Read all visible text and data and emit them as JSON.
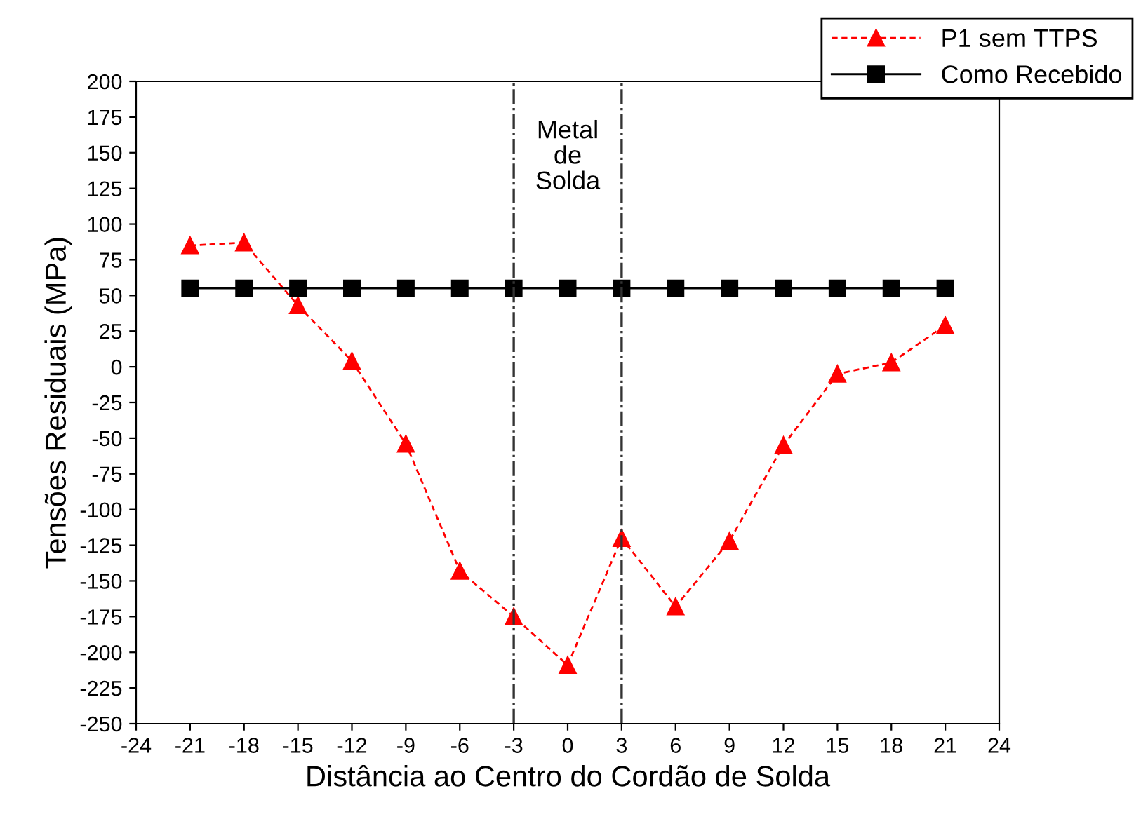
{
  "chart_data": {
    "type": "line",
    "xlabel": "Distância ao Centro do Cordão de Solda",
    "ylabel": "Tensões Residuais (MPa)",
    "x": [
      -21,
      -18,
      -15,
      -12,
      -9,
      -6,
      -3,
      0,
      3,
      6,
      9,
      12,
      15,
      18,
      21
    ],
    "series": [
      {
        "name": "P1 sem TTPS",
        "color": "#ff0000",
        "marker": "triangle",
        "line_style": "dashed",
        "values": [
          85,
          87,
          43,
          4,
          -54,
          -143,
          -175,
          -209,
          -120,
          -168,
          -122,
          -55,
          -5,
          3,
          29
        ]
      },
      {
        "name": "Como Recebido",
        "color": "#000000",
        "marker": "square",
        "line_style": "solid",
        "values": [
          55,
          55,
          55,
          55,
          55,
          55,
          55,
          55,
          55,
          55,
          55,
          55,
          55,
          55,
          55
        ]
      }
    ],
    "xlim": [
      -24,
      24
    ],
    "xticks": [
      -24,
      -21,
      -18,
      -15,
      -12,
      -9,
      -6,
      -3,
      0,
      3,
      6,
      9,
      12,
      15,
      18,
      21,
      24
    ],
    "ylim": [
      -250,
      200
    ],
    "yticks": [
      -250,
      -225,
      -200,
      -175,
      -150,
      -125,
      -100,
      -75,
      -50,
      -25,
      0,
      25,
      50,
      75,
      100,
      125,
      150,
      175,
      200
    ],
    "ref_lines": [
      {
        "axis": "x",
        "value": -3,
        "color": "#333333",
        "line_style": "dashdot"
      },
      {
        "axis": "x",
        "value": 3,
        "color": "#333333",
        "line_style": "dashdot"
      }
    ],
    "annotations": [
      "Metal\nde\nSolda"
    ],
    "grid": false,
    "legend": "top right"
  }
}
